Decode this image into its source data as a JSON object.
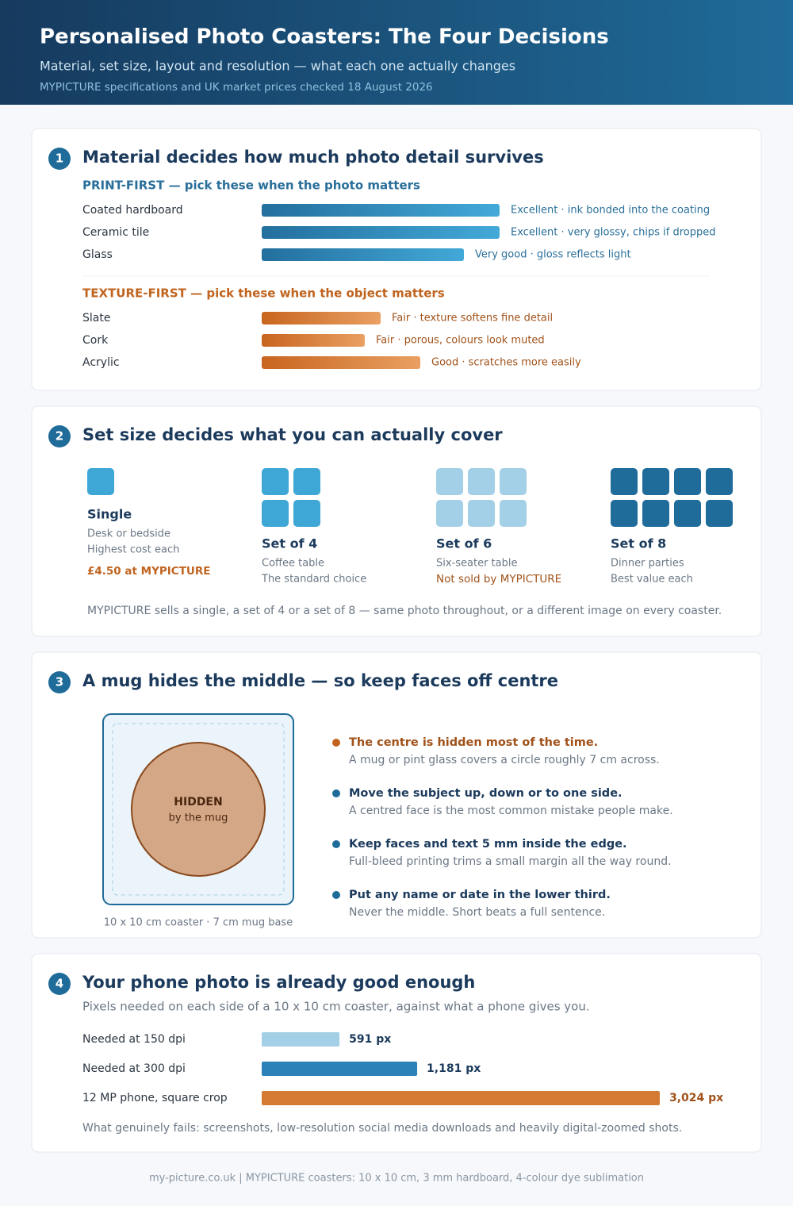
{
  "header": {
    "title": "Personalised Photo Coasters: The Four Decisions",
    "subtitle": "Material, set size, layout and resolution — what each one actually changes",
    "source": "MYPICTURE specifications and UK market prices checked 18 August 2026"
  },
  "materials": {
    "number": 1,
    "title": "Material decides how much photo detail survives",
    "groups": [
      {
        "heading": "PRINT-FIRST — pick these when the photo matters",
        "items": [
          {
            "name": "Coated hardboard",
            "note": "Excellent · ink bonded into the coating"
          },
          {
            "name": "Ceramic tile",
            "note": "Excellent · very glossy, chips if dropped"
          },
          {
            "name": "Glass",
            "note": "Very good · gloss reflects light"
          }
        ]
      },
      {
        "heading": "TEXTURE-FIRST — pick these when the object matters",
        "items": [
          {
            "name": "Slate",
            "note": "Fair · texture softens fine detail"
          },
          {
            "name": "Cork",
            "note": "Fair · porous, colours look muted"
          },
          {
            "name": "Acrylic",
            "note": "Good · scratches more easily"
          }
        ]
      }
    ]
  },
  "sets": {
    "number": 2,
    "title": "Set size decides what you can actually cover",
    "items": [
      {
        "name": "Single",
        "lines": [
          "Desk or bedside",
          "Highest cost each"
        ],
        "note": "£4.50 at MYPICTURE"
      },
      {
        "name": "Set of 4",
        "lines": [
          "Coffee table",
          "The standard choice"
        ]
      },
      {
        "name": "Set of 6",
        "lines": [
          "Six-seater table"
        ],
        "note": "Not sold by MYPICTURE"
      },
      {
        "name": "Set of 8",
        "lines": [
          "Dinner parties",
          "Best value each"
        ]
      }
    ],
    "footnote": "MYPICTURE sells a single, a set of 4 or a set of 8 — same photo throughout, or a different image on every coaster."
  },
  "layout": {
    "number": 3,
    "title": "A mug hides the middle — so keep faces off centre",
    "hidden": "HIDDEN",
    "hidden_sub": "by the mug",
    "caption": "10 x 10 cm coaster · 7 cm mug base",
    "tips": [
      {
        "title": "The centre is hidden most of the time.",
        "text": "A mug or pint glass covers a circle roughly 7 cm across."
      },
      {
        "title": "Move the subject up, down or to one side.",
        "text": "A centred face is the most common mistake people make."
      },
      {
        "title": "Keep faces and text 5 mm inside the edge.",
        "text": "Full-bleed printing trims a small margin all the way round."
      },
      {
        "title": "Put any name or date in the lower third.",
        "text": "Never the middle. Short beats a full sentence."
      }
    ]
  },
  "resolution": {
    "number": 4,
    "title": "Your phone photo is already good enough",
    "subtitle": "Pixels needed on each side of a 10 x 10 cm coaster, against what a phone gives you.",
    "footnote": "What genuinely fails: screenshots, low-resolution social media downloads and heavily digital-zoomed shots."
  },
  "chart_data": {
    "type": "bar",
    "categories": [
      "Needed at 150 dpi",
      "Needed at 300 dpi",
      "12 MP phone, square crop"
    ],
    "values": [
      591,
      1181,
      3024
    ],
    "value_labels": [
      "591 px",
      "1,181 px",
      "3,024 px"
    ],
    "colors": [
      "#a3d0e6",
      "#2a82b8",
      "#d47a32"
    ]
  },
  "footer": "my-picture.co.uk | MYPICTURE coasters: 10 x 10 cm, 3 mm hardboard, 4-colour dye sublimation"
}
